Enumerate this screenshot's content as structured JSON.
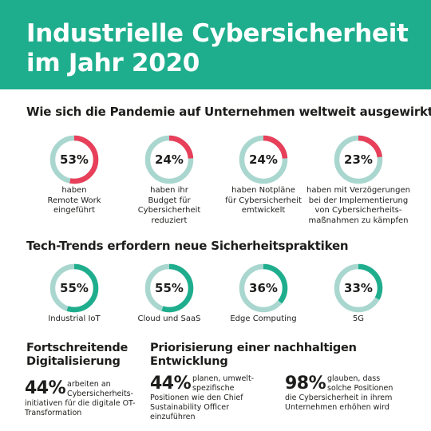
{
  "header": {
    "title": "Industrielle Cybersicherheit im Jahr 2020"
  },
  "colors": {
    "brand_green": "#1fae8d",
    "ring_base": "#a9d7cf",
    "pandemic_accent": "#e83f5a",
    "trend_accent": "#1fae8d"
  },
  "chart_data": [
    {
      "type": "pie",
      "title": "Wie sich die Pandemie auf Unternehmen weltweit ausgewirkt",
      "categories": [
        "haben Remote Work eingeführt",
        "haben ihr Budget für Cybersicherheit reduziert",
        "haben Notpläne für Cybersicherheit emtwickelt",
        "haben mit Verzögerungen bei der Implementierung von Cybersicherheits-maßnahmen zu kämpfen"
      ],
      "values": [
        53,
        24,
        24,
        23
      ],
      "labels": [
        "53%",
        "24%",
        "24%",
        "23%"
      ],
      "captions": [
        [
          "haben",
          "Remote Work",
          "eingeführt"
        ],
        [
          "haben ihr",
          "Budget für",
          "Cybersicherheit",
          "reduziert"
        ],
        [
          "haben Notpläne",
          "für Cybersicherheit",
          "emtwickelt"
        ],
        [
          "haben mit Verzögerungen",
          "bei der Implementierung",
          "von Cybersicherheits-",
          "maßnahmen zu kämpfen"
        ]
      ]
    },
    {
      "type": "pie",
      "title": "Tech-Trends erfordern neue Sicherheitspraktiken",
      "categories": [
        "Industrial IoT",
        "Cloud und SaaS",
        "Edge Computing",
        "5G"
      ],
      "values": [
        55,
        55,
        36,
        33
      ],
      "labels": [
        "55%",
        "55%",
        "36%",
        "33%"
      ]
    }
  ],
  "digital": {
    "title": [
      "Fortschreitende",
      "Digitalisierung"
    ],
    "stat": "44%",
    "lines": [
      "arbeiten an",
      "Cybersicherheits-",
      "initiativen für die digitale OT-",
      "Transformation"
    ]
  },
  "sustain": {
    "title": [
      "Priorisierung einer nachhaltigen",
      "Entwicklung"
    ],
    "stat1": "44%",
    "lines1": [
      "planen, umwelt-",
      "spezifische",
      "Positionen wie den Chief",
      "Sustainability Officer",
      "einzuführen"
    ],
    "stat2": "98%",
    "lines2": [
      "glauben, dass",
      "solche Positionen",
      "die Cybersicherheit in ihrem",
      "Unternehmen erhöhen wird"
    ]
  }
}
